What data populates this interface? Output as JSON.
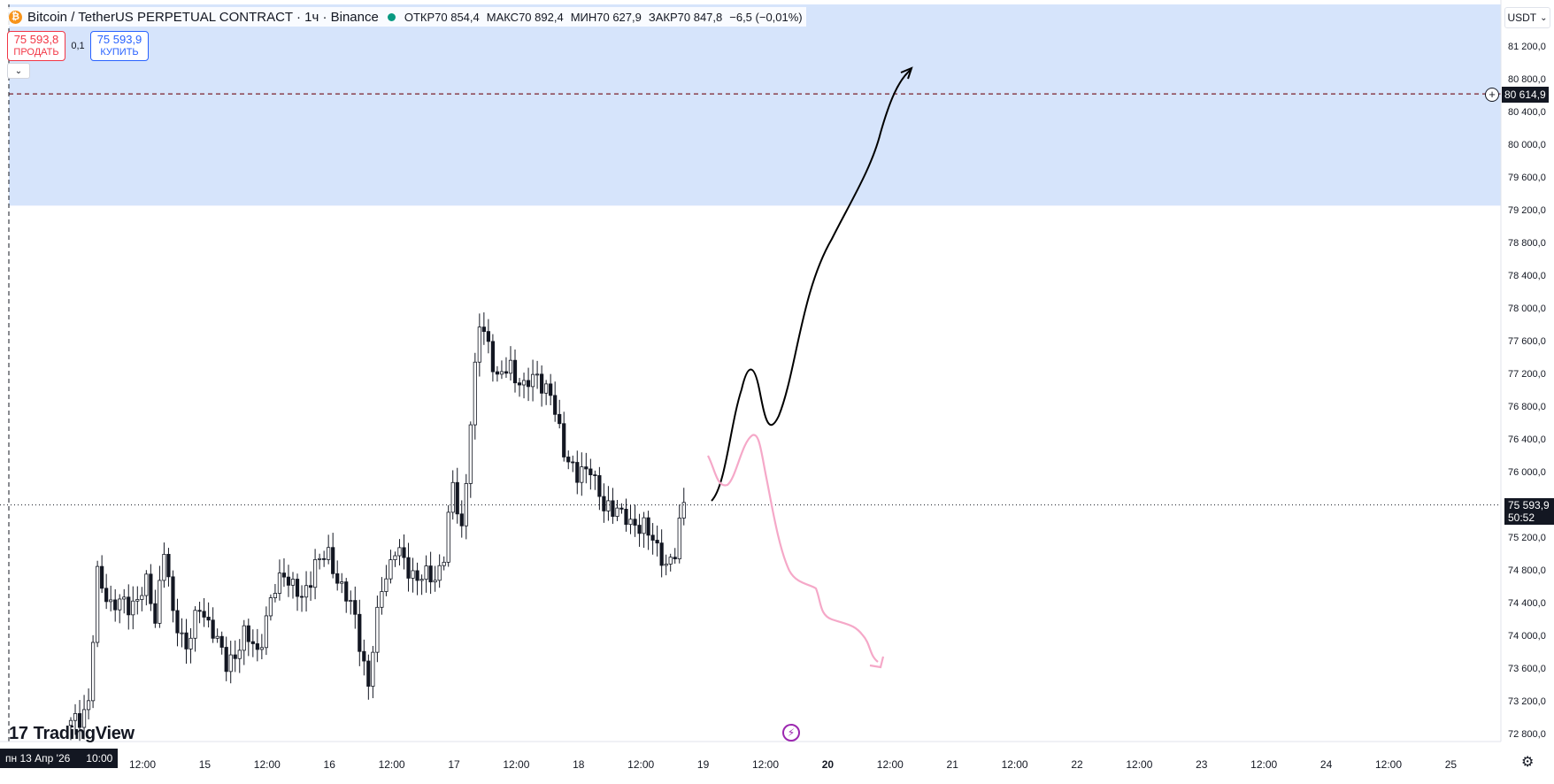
{
  "header": {
    "symbol_title": "Bitcoin / TetherUS PERPETUAL CONTRACT · 1ч · Binance",
    "coin_icon": "bitcoin-icon",
    "ohlc": {
      "open_label": "ОТКР",
      "open_value": "70 854,4",
      "high_label": "МАКС",
      "high_value": "70 892,4",
      "low_label": "МИН",
      "low_value": "70 627,9",
      "close_label": "ЗАКР",
      "close_value": "70 847,8",
      "change": "−6,5 (−0,01%)"
    },
    "status_color": "#089981"
  },
  "trade": {
    "sell_price": "75 593,8",
    "sell_label": "ПРОДАТЬ",
    "buy_price": "75 593,9",
    "buy_label": "КУПИТЬ",
    "spread": "0,1",
    "sell_color": "#f23645",
    "buy_color": "#2962ff"
  },
  "currency": {
    "label": "USDT"
  },
  "price_axis": {
    "labels": [
      "81 200,0",
      "80 800,0",
      "80 400,0",
      "80 000,0",
      "79 600,0",
      "79 200,0",
      "78 800,0",
      "78 400,0",
      "78 000,0",
      "77 600,0",
      "77 200,0",
      "76 800,0",
      "76 400,0",
      "76 000,0",
      "75 200,0",
      "74 800,0",
      "74 400,0",
      "74 000,0",
      "73 600,0",
      "73 200,0",
      "72 800,0"
    ]
  },
  "time_axis": {
    "labels": [
      "12:00",
      "15",
      "12:00",
      "16",
      "12:00",
      "17",
      "12:00",
      "18",
      "12:00",
      "19",
      "12:00",
      "20",
      "12:00",
      "21",
      "12:00",
      "22",
      "12:00",
      "23",
      "12:00",
      "24",
      "12:00",
      "25"
    ],
    "bold_index": 11
  },
  "current_price": {
    "value": "75 593,9",
    "countdown": "50:52"
  },
  "target_level": {
    "value": "80 614,9"
  },
  "crosshair_date": {
    "date": "пн 13 Апр '26",
    "time": "10:00"
  },
  "zone": {
    "color": "#d6e4fb"
  },
  "drawings": {
    "bull_color": "#000000",
    "bear_color": "#f5a8c8"
  },
  "logo": {
    "text": "TradingView"
  },
  "chart_data": {
    "type": "candlestick",
    "timeframe": "1h",
    "ylim": [
      72600,
      81500
    ],
    "price_range_zone": [
      79250,
      81500
    ],
    "target_price": 80614.9,
    "last_price": 75593.9
  }
}
